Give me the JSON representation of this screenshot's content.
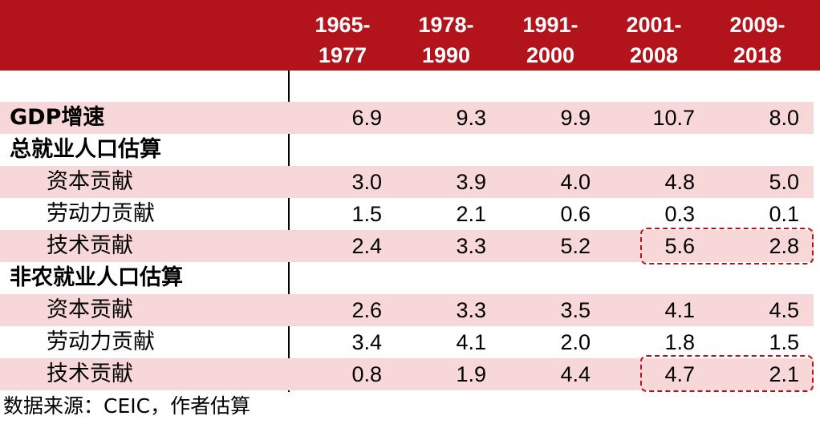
{
  "header": {
    "periods": [
      "1965-\n1977",
      "1978-\n1990",
      "1991-\n2000",
      "2001-\n2008",
      "2009-\n2018"
    ]
  },
  "rows": [
    {
      "label": "GDP增速",
      "values": [
        "6.9",
        "9.3",
        "9.9",
        "10.7",
        "8.0"
      ]
    },
    {
      "label": "总就业人口估算"
    },
    {
      "label": "资本贡献",
      "values": [
        "3.0",
        "3.9",
        "4.0",
        "4.8",
        "5.0"
      ]
    },
    {
      "label": "劳动力贡献",
      "values": [
        "1.5",
        "2.1",
        "0.6",
        "0.3",
        "0.1"
      ]
    },
    {
      "label": "技术贡献",
      "values": [
        "2.4",
        "3.3",
        "5.2",
        "5.6",
        "2.8"
      ]
    },
    {
      "label": "非农就业人口估算"
    },
    {
      "label": "资本贡献",
      "values": [
        "2.6",
        "3.3",
        "3.5",
        "4.1",
        "4.5"
      ]
    },
    {
      "label": "劳动力贡献",
      "values": [
        "3.4",
        "4.1",
        "2.0",
        "1.8",
        "1.5"
      ]
    },
    {
      "label": "技术贡献",
      "values": [
        "0.8",
        "1.9",
        "4.4",
        "4.7",
        "2.1"
      ]
    }
  ],
  "footnote": "数据来源：CEIC，作者估算",
  "colors": {
    "header_bg": "#b3131b",
    "row_shade": "#f8d7d8",
    "highlight_border": "#b3131b"
  }
}
